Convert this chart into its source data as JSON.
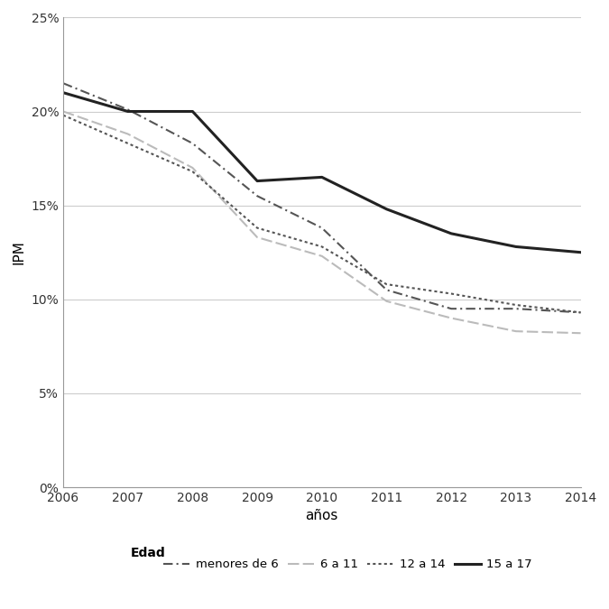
{
  "years": [
    2006,
    2007,
    2008,
    2009,
    2010,
    2011,
    2012,
    2013,
    2014
  ],
  "menores_de_6": [
    0.215,
    0.201,
    0.183,
    0.155,
    0.138,
    0.105,
    0.095,
    0.095,
    0.093
  ],
  "de_6_a_11": [
    0.2,
    0.188,
    0.17,
    0.133,
    0.123,
    0.099,
    0.09,
    0.083,
    0.082
  ],
  "de_12_a_14": [
    0.198,
    0.183,
    0.168,
    0.138,
    0.128,
    0.108,
    0.103,
    0.097,
    0.093
  ],
  "de_15_a_17": [
    0.21,
    0.2,
    0.2,
    0.163,
    0.165,
    0.148,
    0.135,
    0.128,
    0.125
  ],
  "color_menores": "#555555",
  "color_6_11": "#bbbbbb",
  "color_12_14": "#555555",
  "color_15_17": "#222222",
  "ylabel": "IPM",
  "xlabel": "años",
  "ylim": [
    0,
    0.25
  ],
  "yticks": [
    0,
    0.05,
    0.1,
    0.15,
    0.2,
    0.25
  ],
  "legend_labels": [
    "menores de 6",
    "6 a 11",
    "12 a 14",
    "15 a 17"
  ],
  "background_color": "#ffffff",
  "grid_color": "#cccccc"
}
